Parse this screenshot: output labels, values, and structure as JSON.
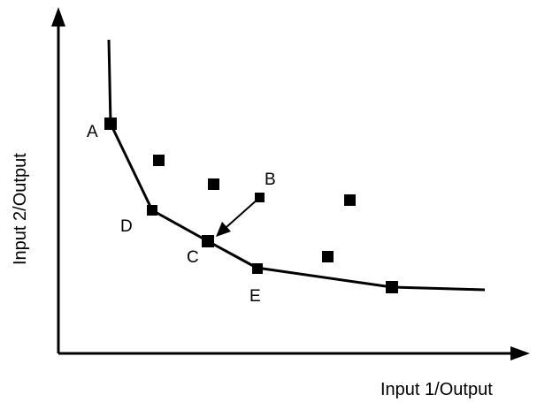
{
  "axes": {
    "x_label": "Input 1/Output",
    "y_label": "Input 2/Output"
  },
  "points": {
    "A": "A",
    "B": "B",
    "C": "C",
    "D": "D",
    "E": "E"
  },
  "colors": {
    "ink": "#000000",
    "background": "#ffffff"
  }
}
